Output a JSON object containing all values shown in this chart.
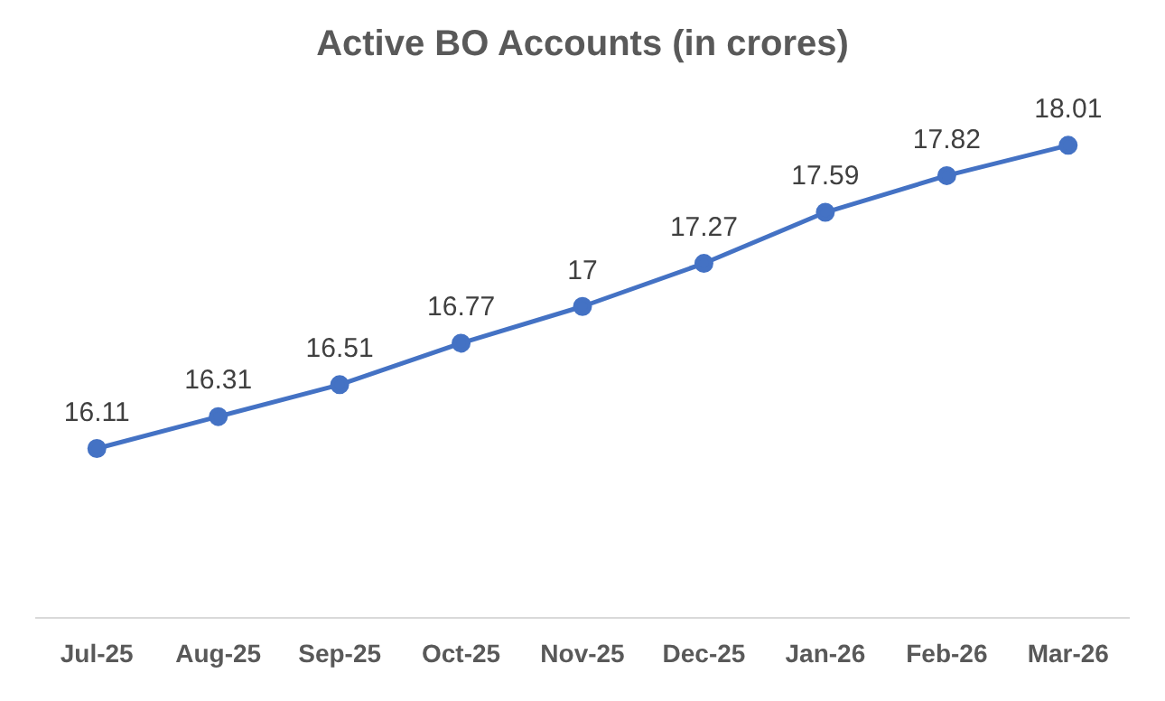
{
  "chart_data": {
    "type": "line",
    "title": "Active BO Accounts (in crores)",
    "categories": [
      "Jul-25",
      "Aug-25",
      "Sep-25",
      "Oct-25",
      "Nov-25",
      "Dec-25",
      "Jan-26",
      "Feb-26",
      "Mar-26"
    ],
    "series": [
      {
        "color": "#4472c4",
        "values": [
          16.11,
          16.31,
          16.51,
          16.77,
          17,
          17.27,
          17.59,
          17.82,
          18.01
        ]
      }
    ],
    "data_labels": true,
    "marker": "circle",
    "line_style": "solid",
    "grid": false,
    "legend": false
  }
}
